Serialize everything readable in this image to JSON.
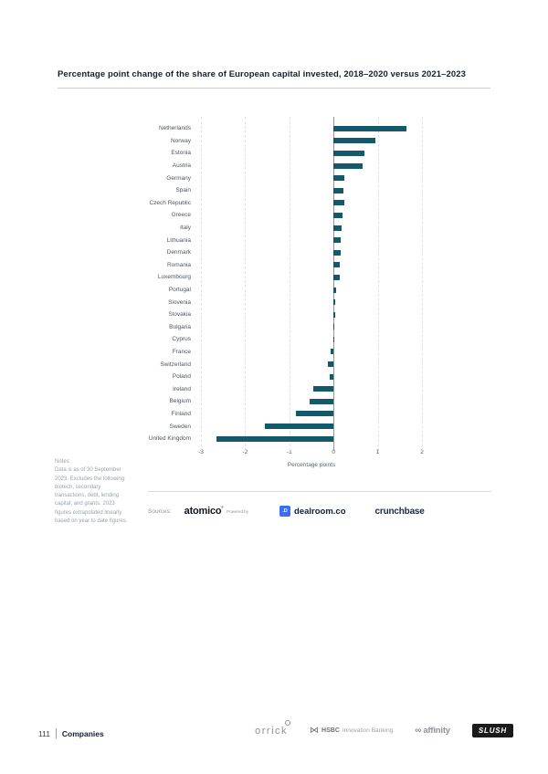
{
  "chart": {
    "title": "Percentage point change of the share of European capital invested, 2018–2020 versus 2021–2023"
  },
  "chart_data": {
    "type": "bar",
    "orientation": "horizontal",
    "title": "Percentage point change of the share of European capital invested, 2018–2020 versus 2021–2023",
    "categories": [
      "Netherlands",
      "Norway",
      "Estonia",
      "Austria",
      "Germany",
      "Spain",
      "Czech Republic",
      "Greece",
      "Italy",
      "Lithuania",
      "Denmark",
      "Romania",
      "Luxembourg",
      "Portugal",
      "Slovenia",
      "Slovakia",
      "Bulgaria",
      "Cyprus",
      "France",
      "Switzerland",
      "Poland",
      "Ireland",
      "Belgium",
      "Finland",
      "Sweden",
      "United Kingdom"
    ],
    "values": [
      1.65,
      0.95,
      0.7,
      0.65,
      0.25,
      0.22,
      0.25,
      0.2,
      0.18,
      0.16,
      0.16,
      0.14,
      0.15,
      0.06,
      0.03,
      0.03,
      0.02,
      0.02,
      -0.06,
      -0.12,
      -0.09,
      -0.45,
      -0.55,
      -0.85,
      -1.55,
      -2.65
    ],
    "xlabel": "Percentage points",
    "xlim": [
      -3,
      2
    ],
    "ticks": [
      -3,
      -2,
      -1,
      0,
      1,
      2
    ],
    "grid": "dashed-vertical",
    "bar_color": "#14596b",
    "legend": "none"
  },
  "notes": {
    "heading": "Notes:",
    "body": "Data is as of 30 September 2023. Excludes the following: biotech, secondary transactions, debt, lending capital, and grants. 2023 figures extrapolated linearly based on year to date figures."
  },
  "sources": {
    "label": "Sources:",
    "atomico": "atomico",
    "atomico_mark": "°",
    "powered_by": "Powered by",
    "dealroom_icon": ".D",
    "dealroom": "dealroom.co",
    "crunchbase": "crunchbase"
  },
  "footer": {
    "page_number": "111",
    "section": "Companies",
    "orrick": "orrick",
    "hsbc_mark": "⋈",
    "hsbc_name": "HSBC",
    "hsbc_suffix": "Innovation Banking",
    "affinity_mark": "∞",
    "affinity_name": "affinity",
    "slush": "SLUSH"
  }
}
